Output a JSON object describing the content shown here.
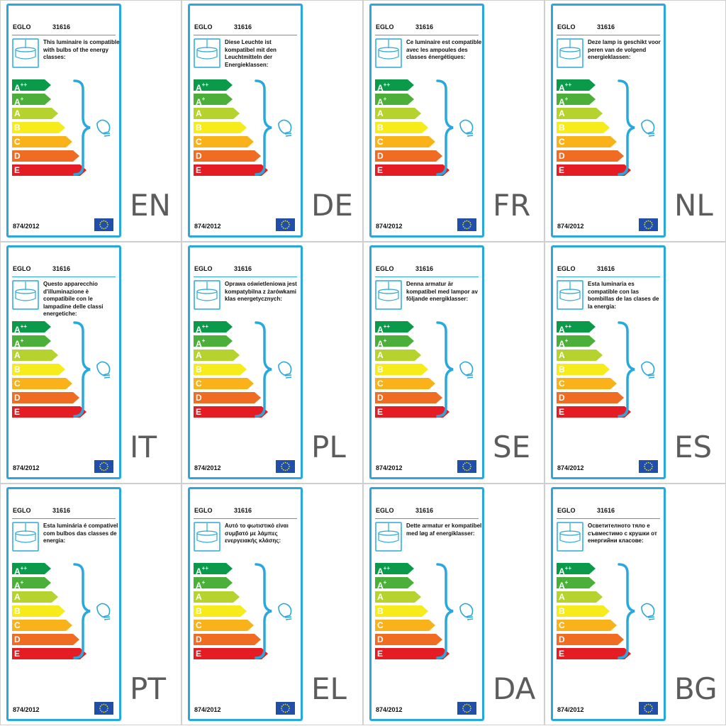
{
  "common": {
    "brand": "EGLO",
    "model": "31616",
    "regulation": "874/2012",
    "classes": [
      "A++",
      "A+",
      "A",
      "B",
      "C",
      "D",
      "E"
    ],
    "class_colors": [
      "#0a9a4a",
      "#4caf3a",
      "#b6d22f",
      "#f6ec1c",
      "#f9b21a",
      "#ef6c23",
      "#e41d25"
    ],
    "accent": "#29a8dd",
    "icons": [
      "ceiling-lamp-icon",
      "curly-brace",
      "light-bulb-icon",
      "eu-flag-icon"
    ]
  },
  "labels": [
    {
      "lang": "EN",
      "text": "This luminaire is compatible with bulbs of the energy classes:"
    },
    {
      "lang": "DE",
      "text": "Diese Leuchte ist kompatibel mit den Leuchtmitteln der Energieklassen:"
    },
    {
      "lang": "FR",
      "text": "Ce luminaire est compatible avec les ampoules des classes énergétiques:"
    },
    {
      "lang": "NL",
      "text": "Deze lamp is geschikt voor peren van de volgend energieklassen:"
    },
    {
      "lang": "IT",
      "text": "Questo apparecchio d'illuminazione è compatibile con le lampadine delle classi energetiche:"
    },
    {
      "lang": "PL",
      "text": "Oprawa oświetleniowa jest kompatybilna z żarówkami klas energetycznych:"
    },
    {
      "lang": "SE",
      "text": "Denna armatur är kompatibel med lampor av följande energiklasser:"
    },
    {
      "lang": "ES",
      "text": "Esta luminaria es compatible con las bombillas de las clases de la energía:"
    },
    {
      "lang": "PT",
      "text": "Esta luminária é compatível com bulbos das classes de energia:"
    },
    {
      "lang": "EL",
      "text": "Αυτό το φωτιστικό είναι συμβατό με λάμπες ενεργειακής κλάσης:"
    },
    {
      "lang": "DA",
      "text": "Dette armatur er kompatibel med løg af energiklasser:"
    },
    {
      "lang": "BG",
      "text": "Осветителното тяло е съвместимо с крушки от енергийни класове:"
    }
  ]
}
